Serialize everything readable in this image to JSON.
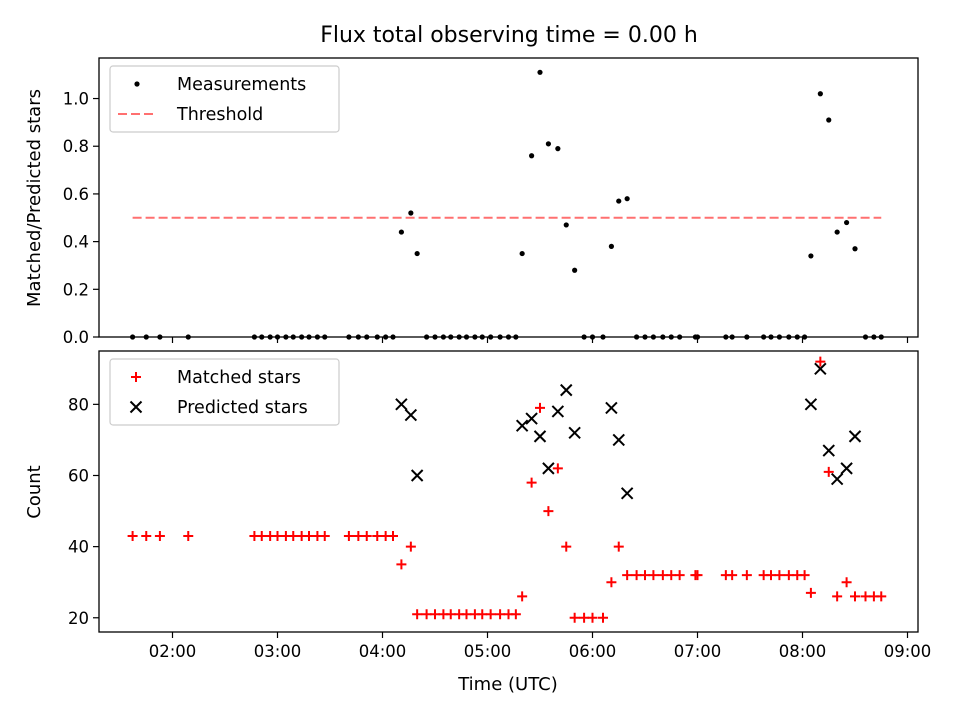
{
  "figure": {
    "title": "Flux total observing time = 0.00 h",
    "x_tick_labels": [
      "02:00",
      "03:00",
      "04:00",
      "05:00",
      "06:00",
      "07:00",
      "08:00",
      "09:00"
    ]
  },
  "chart_data": [
    {
      "type": "scatter",
      "xlabel": "",
      "ylabel": "Matched/Predicted stars",
      "xlim": [
        1.3,
        9.1
      ],
      "ylim": [
        0,
        1.17
      ],
      "yticks": [
        0.0,
        0.2,
        0.4,
        0.6,
        0.8,
        1.0
      ],
      "y_tick_labels": [
        "0.0",
        "0.2",
        "0.4",
        "0.6",
        "0.8",
        "1.0"
      ],
      "legend_position": "top-left",
      "series": [
        {
          "name": "Measurements",
          "marker": "dot",
          "color": "#000000",
          "x": [
            1.62,
            1.75,
            1.88,
            2.15,
            2.78,
            2.85,
            2.93,
            3.0,
            3.08,
            3.15,
            3.23,
            3.3,
            3.38,
            3.45,
            3.68,
            3.77,
            3.85,
            3.95,
            4.03,
            4.1,
            4.18,
            4.27,
            4.33,
            4.42,
            4.5,
            4.58,
            4.65,
            4.73,
            4.8,
            4.88,
            4.95,
            5.03,
            5.12,
            5.2,
            5.27,
            5.33,
            5.42,
            5.5,
            5.58,
            5.67,
            5.75,
            5.83,
            5.92,
            6.0,
            6.1,
            6.18,
            6.25,
            6.33,
            6.42,
            6.5,
            6.58,
            6.67,
            6.75,
            6.83,
            6.98,
            7.0,
            7.27,
            7.33,
            7.47,
            7.63,
            7.7,
            7.78,
            7.87,
            7.95,
            8.02,
            8.08,
            8.17,
            8.25,
            8.33,
            8.42,
            8.5,
            8.6,
            8.68,
            8.75
          ],
          "y": [
            0.0,
            0.0,
            0.0,
            0.0,
            0.0,
            0.0,
            0.0,
            0.0,
            0.0,
            0.0,
            0.0,
            0.0,
            0.0,
            0.0,
            0.0,
            0.0,
            0.0,
            0.0,
            0.0,
            0.0,
            0.44,
            0.52,
            0.35,
            0.0,
            0.0,
            0.0,
            0.0,
            0.0,
            0.0,
            0.0,
            0.0,
            0.0,
            0.0,
            0.0,
            0.0,
            0.35,
            0.76,
            1.11,
            0.81,
            0.79,
            0.47,
            0.28,
            0.0,
            0.0,
            0.0,
            0.38,
            0.57,
            0.58,
            0.0,
            0.0,
            0.0,
            0.0,
            0.0,
            0.0,
            0.0,
            0.0,
            0.0,
            0.0,
            0.0,
            0.0,
            0.0,
            0.0,
            0.0,
            0.0,
            0.0,
            0.34,
            1.02,
            0.91,
            0.44,
            0.48,
            0.37,
            0.0,
            0.0,
            0.0
          ]
        },
        {
          "name": "Threshold",
          "line_style": "dashed",
          "color": "#ff7070",
          "x": [
            1.62,
            8.75
          ],
          "y": [
            0.5,
            0.5
          ]
        }
      ]
    },
    {
      "type": "scatter",
      "xlabel": "Time (UTC)",
      "ylabel": "Count",
      "xlim": [
        1.3,
        9.1
      ],
      "ylim": [
        16,
        95
      ],
      "yticks": [
        20,
        40,
        60,
        80
      ],
      "y_tick_labels": [
        "20",
        "40",
        "60",
        "80"
      ],
      "legend_position": "top-left",
      "series": [
        {
          "name": "Matched stars",
          "marker": "plus",
          "color": "#ff0000",
          "x": [
            1.62,
            1.75,
            1.88,
            2.15,
            2.78,
            2.85,
            2.93,
            3.0,
            3.08,
            3.15,
            3.23,
            3.3,
            3.38,
            3.45,
            3.68,
            3.77,
            3.85,
            3.95,
            4.03,
            4.1,
            4.18,
            4.27,
            4.33,
            4.42,
            4.5,
            4.58,
            4.65,
            4.73,
            4.8,
            4.88,
            4.95,
            5.03,
            5.12,
            5.2,
            5.27,
            5.33,
            5.42,
            5.5,
            5.58,
            5.67,
            5.75,
            5.83,
            5.92,
            6.0,
            6.1,
            6.18,
            6.25,
            6.33,
            6.42,
            6.5,
            6.58,
            6.67,
            6.75,
            6.83,
            6.98,
            7.0,
            7.27,
            7.33,
            7.47,
            7.63,
            7.7,
            7.78,
            7.87,
            7.95,
            8.02,
            8.08,
            8.17,
            8.25,
            8.33,
            8.42,
            8.5,
            8.6,
            8.68,
            8.75
          ],
          "y": [
            43,
            43,
            43,
            43,
            43,
            43,
            43,
            43,
            43,
            43,
            43,
            43,
            43,
            43,
            43,
            43,
            43,
            43,
            43,
            43,
            35,
            40,
            21,
            21,
            21,
            21,
            21,
            21,
            21,
            21,
            21,
            21,
            21,
            21,
            21,
            26,
            58,
            79,
            50,
            62,
            40,
            20,
            20,
            20,
            20,
            30,
            40,
            32,
            32,
            32,
            32,
            32,
            32,
            32,
            32,
            32,
            32,
            32,
            32,
            32,
            32,
            32,
            32,
            32,
            32,
            27,
            92,
            61,
            26,
            30,
            26,
            26,
            26,
            26
          ]
        },
        {
          "name": "Predicted stars",
          "marker": "x",
          "color": "#000000",
          "x": [
            4.18,
            4.27,
            4.33,
            5.33,
            5.42,
            5.5,
            5.58,
            5.67,
            5.75,
            5.83,
            6.18,
            6.25,
            6.33,
            8.08,
            8.17,
            8.25,
            8.33,
            8.42,
            8.5
          ],
          "y": [
            80,
            77,
            60,
            74,
            76,
            71,
            62,
            78,
            84,
            72,
            79,
            70,
            55,
            80,
            90,
            67,
            59,
            62,
            71
          ]
        }
      ]
    }
  ]
}
